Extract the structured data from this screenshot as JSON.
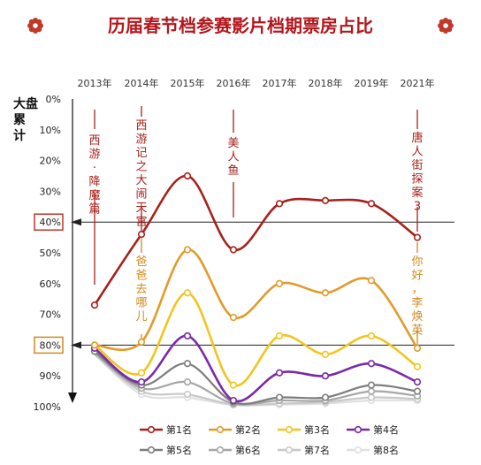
{
  "chart_data": {
    "type": "line",
    "title": "历届春节档参赛影片档期票房占比",
    "ylabel": "大盘累计",
    "y_axis": "0% at top, 100% at bottom (inverted)",
    "ylim": [
      0,
      100
    ],
    "ytick_labels": [
      "0%",
      "10%",
      "20%",
      "30%",
      "40%",
      "50%",
      "60%",
      "70%",
      "80%",
      "90%",
      "100%"
    ],
    "x": [
      "2013年",
      "2014年",
      "2015年",
      "2016年",
      "2017年",
      "2018年",
      "2019年",
      "2021年"
    ],
    "highlighted_ticks": [
      "40%",
      "80%"
    ],
    "highlight_colors": {
      "40%": "#c0392b",
      "80%": "#d08a1e"
    },
    "legend_position": "bottom",
    "grid": false,
    "series": [
      {
        "name": "第1名",
        "color": "#a8201a",
        "values": [
          67,
          44,
          25,
          49,
          34,
          33,
          34,
          45
        ]
      },
      {
        "name": "第2名",
        "color": "#e39a2b",
        "values": [
          80,
          79,
          49,
          71,
          60,
          63,
          59,
          81
        ]
      },
      {
        "name": "第3名",
        "color": "#f2c51f",
        "values": [
          80,
          89,
          63,
          93,
          77,
          83,
          77,
          87
        ]
      },
      {
        "name": "第4名",
        "color": "#7a2aa8",
        "values": [
          81,
          92,
          77,
          98,
          89,
          90,
          86,
          92
        ]
      },
      {
        "name": "第5名",
        "color": "#7d7d7d",
        "values": [
          82,
          93,
          86,
          98.5,
          97,
          97,
          93,
          95
        ]
      },
      {
        "name": "第6名",
        "color": "#a6a6a6",
        "values": [
          82.5,
          94,
          92,
          99,
          98,
          98,
          95,
          96.5
        ]
      },
      {
        "name": "第7名",
        "color": "#c8c8c8",
        "values": [
          83,
          95,
          96,
          99.3,
          99,
          98.5,
          97,
          97.5
        ]
      },
      {
        "name": "第8名",
        "color": "#e0e0e0",
        "values": [
          83,
          96,
          97,
          99.5,
          99.3,
          99,
          98,
          98
        ]
      }
    ],
    "annotations": [
      {
        "year": "2013年",
        "text": "西游·降魔篇",
        "color": "#a8201a"
      },
      {
        "year": "2014年",
        "text": "西游记之大闹天宫",
        "color": "#a8201a"
      },
      {
        "year": "2016年",
        "text": "美人鱼",
        "color": "#a8201a"
      },
      {
        "year": "2021年",
        "text": "唐人街探案3",
        "color": "#a8201a"
      },
      {
        "year": "2014年",
        "text": "爸爸去哪儿",
        "color": "#d08a1e"
      },
      {
        "year": "2021年",
        "text": "你好，李焕英",
        "color": "#d08a1e"
      }
    ]
  }
}
